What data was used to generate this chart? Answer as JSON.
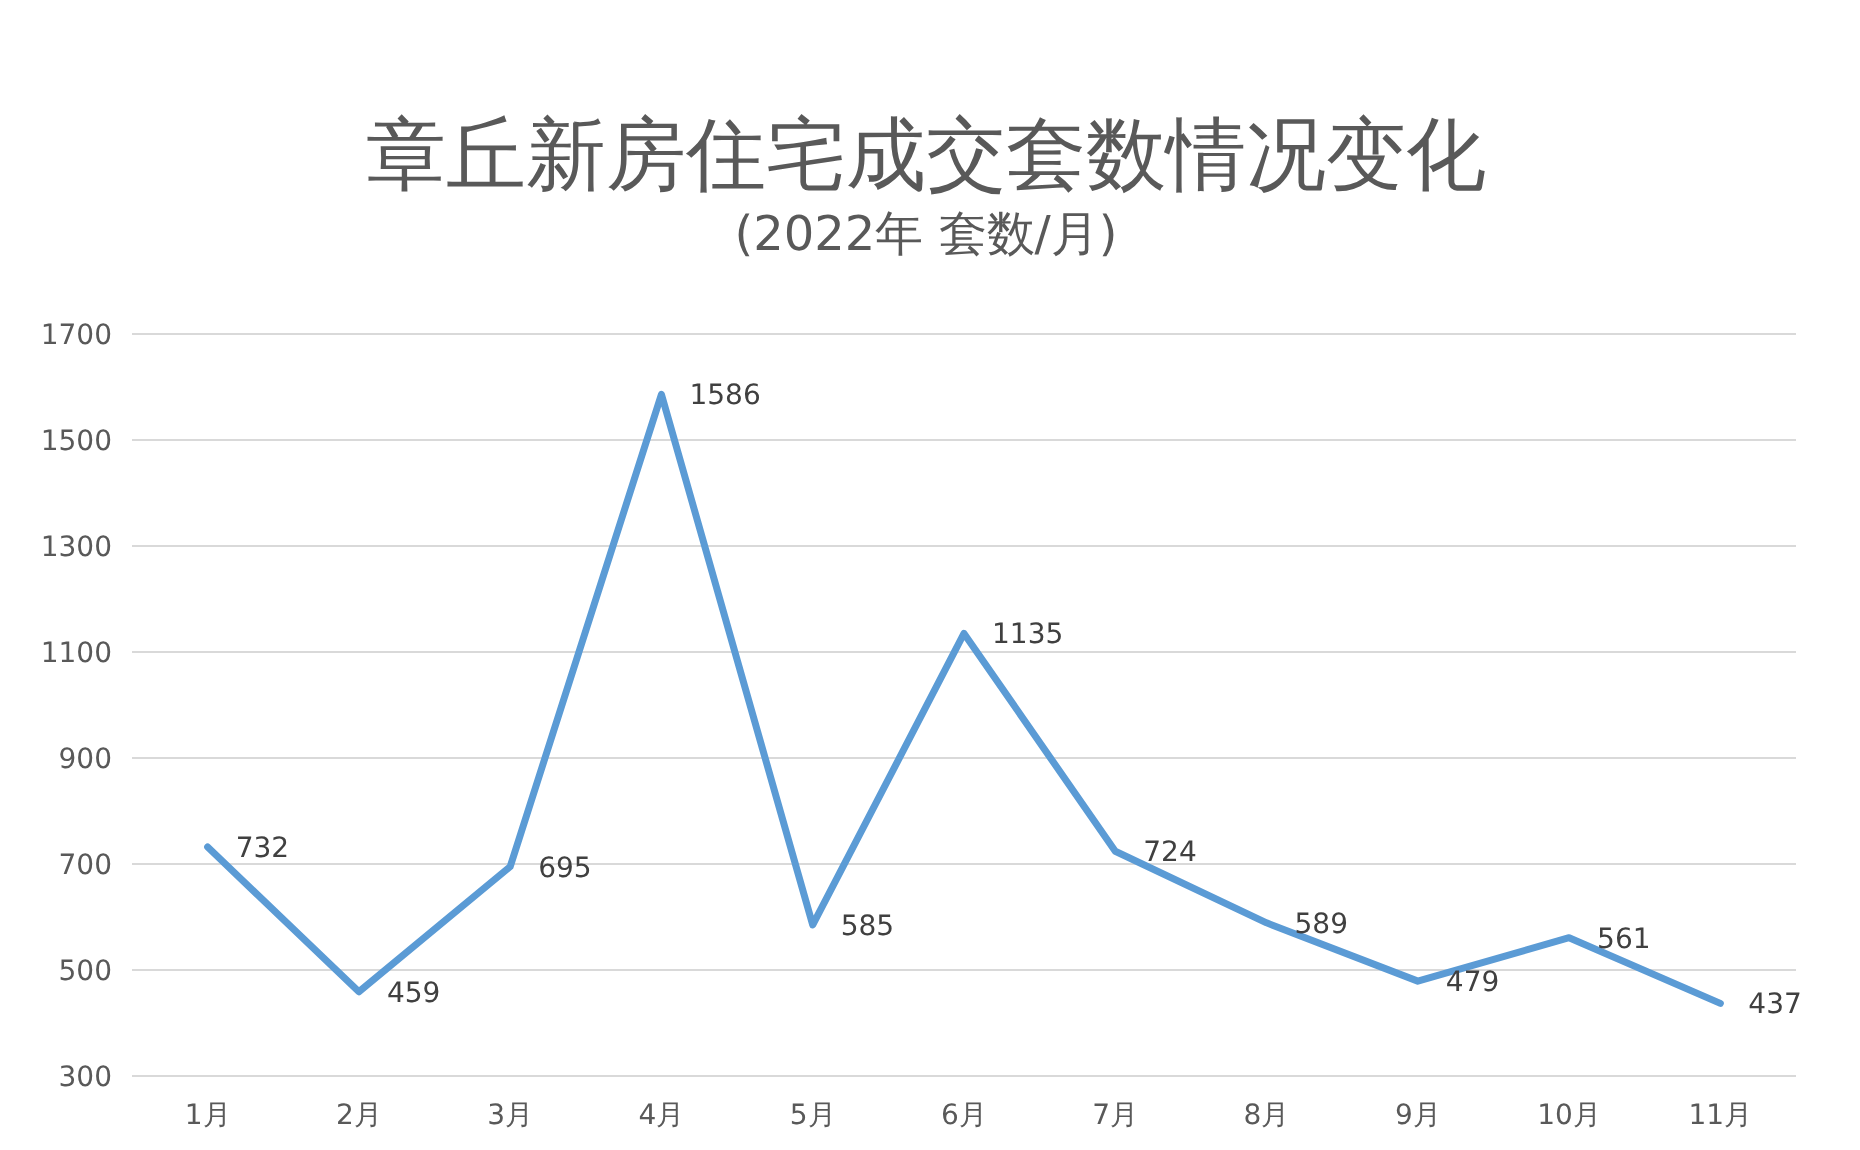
{
  "chart_data": {
    "type": "line",
    "title": "章丘新房住宅成交套数情况变化",
    "subtitle": "(2022年 套数/月)",
    "categories": [
      "1月",
      "2月",
      "3月",
      "4月",
      "5月",
      "6月",
      "7月",
      "8月",
      "9月",
      "10月",
      "11月"
    ],
    "series": [
      {
        "color": "#5b9bd5",
        "values": [
          732,
          459,
          695,
          1586,
          585,
          1135,
          724,
          589,
          479,
          561,
          437
        ]
      }
    ],
    "ylim": [
      300,
      1700
    ],
    "yticks": [
      300,
      500,
      700,
      900,
      1100,
      1300,
      1500,
      1700
    ],
    "grid": "y",
    "data_labels": true,
    "marker": "none",
    "line_style": "solid"
  }
}
